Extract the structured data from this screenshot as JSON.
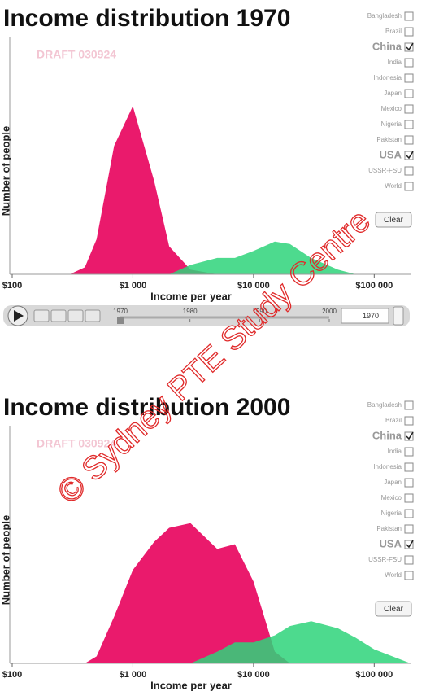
{
  "watermark": "© Sydney PTE Study Centre",
  "chart_data": [
    {
      "type": "area",
      "title": "Income distribution 1970",
      "draft_label": "DRAFT 030924",
      "xlabel": "Income per year",
      "ylabel": "Number of people",
      "xscale": "log",
      "x": [
        100,
        200,
        300,
        400,
        500,
        700,
        1000,
        1500,
        2000,
        3000,
        5000,
        7000,
        10000,
        15000,
        20000,
        30000,
        50000,
        70000,
        100000,
        200000
      ],
      "xlim": [
        100,
        200000
      ],
      "ylim": [
        0,
        100
      ],
      "xticks": [
        {
          "value": 100,
          "label": "$100"
        },
        {
          "value": 1000,
          "label": "$1 000"
        },
        {
          "value": 10000,
          "label": "$10 000"
        },
        {
          "value": 100000,
          "label": "$100 000"
        }
      ],
      "series": [
        {
          "name": "China",
          "color": "#ea1a6c",
          "values": [
            0,
            0,
            0,
            3,
            15,
            55,
            72,
            40,
            12,
            2,
            0,
            0,
            0,
            0,
            0,
            0,
            0,
            0,
            0,
            0
          ]
        },
        {
          "name": "USA",
          "color": "#2ed47a",
          "values": [
            0,
            0,
            0,
            0,
            0,
            0,
            0,
            0,
            0,
            4,
            7,
            7,
            10,
            14,
            13,
            7,
            2,
            0,
            0,
            0
          ]
        }
      ],
      "countries": [
        "Bangladesh",
        "Brazil",
        "China",
        "India",
        "Indonesia",
        "Japan",
        "Mexico",
        "Nigeria",
        "Pakistan",
        "USA",
        "USSR-FSU",
        "World"
      ],
      "checked": [
        "China",
        "USA"
      ],
      "clear_button": "Clear",
      "timeline": {
        "ticks": [
          1970,
          1980,
          1990,
          2000
        ],
        "value": 1970
      }
    },
    {
      "type": "area",
      "title": "Income distribution 2000",
      "draft_label": "DRAFT 030924",
      "xlabel": "Income per year",
      "ylabel": "Number of people",
      "xscale": "log",
      "x": [
        100,
        200,
        300,
        400,
        500,
        700,
        1000,
        1500,
        2000,
        3000,
        5000,
        7000,
        10000,
        15000,
        20000,
        30000,
        50000,
        70000,
        100000,
        200000
      ],
      "xlim": [
        100,
        200000
      ],
      "ylim": [
        0,
        100
      ],
      "xticks": [
        {
          "value": 100,
          "label": "$100"
        },
        {
          "value": 1000,
          "label": "$1 000"
        },
        {
          "value": 10000,
          "label": "$10 000"
        },
        {
          "value": 100000,
          "label": "$100 000"
        }
      ],
      "series": [
        {
          "name": "China",
          "color": "#ea1a6c",
          "values": [
            0,
            0,
            0,
            0,
            3,
            20,
            40,
            52,
            58,
            60,
            49,
            51,
            35,
            5,
            0,
            0,
            0,
            0,
            0,
            0
          ]
        },
        {
          "name": "USA",
          "color": "#2ed47a",
          "values": [
            0,
            0,
            0,
            0,
            0,
            0,
            0,
            0,
            0,
            0,
            5,
            9,
            9,
            12,
            16,
            18,
            15,
            11,
            6,
            0
          ]
        }
      ],
      "countries": [
        "Bangladesh",
        "Brazil",
        "China",
        "India",
        "Indonesia",
        "Japan",
        "Mexico",
        "Nigeria",
        "Pakistan",
        "USA",
        "USSR-FSU",
        "World"
      ],
      "checked": [
        "China",
        "USA"
      ],
      "clear_button": "Clear"
    }
  ]
}
